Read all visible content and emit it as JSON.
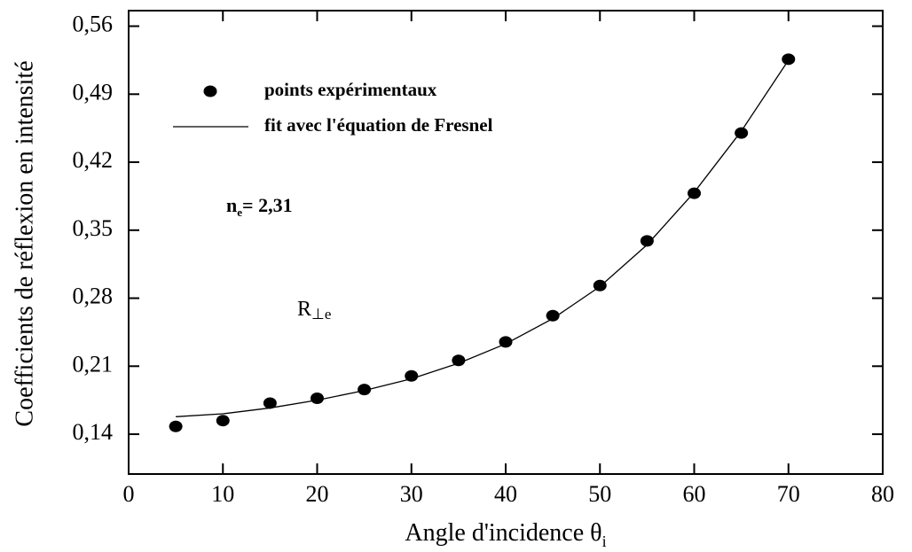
{
  "chart_data": {
    "type": "scatter",
    "xlabel": "Angle d'incidence θ",
    "xlabel_sub": "i",
    "ylabel": "Coefficients de réflexion en intensité",
    "x": [
      5,
      10,
      15,
      20,
      25,
      30,
      35,
      40,
      45,
      50,
      55,
      60,
      65,
      70
    ],
    "series": [
      {
        "name": "points expérimentaux",
        "color": "#000000",
        "style": "marker",
        "values": [
          0.148,
          0.154,
          0.172,
          0.177,
          0.186,
          0.2,
          0.216,
          0.235,
          0.262,
          0.293,
          0.339,
          0.388,
          0.45,
          0.526
        ]
      },
      {
        "name": "fit avec l'équation de Fresnel",
        "color": "#000000",
        "style": "line",
        "values": [
          0.158,
          0.161,
          0.167,
          0.175,
          0.185,
          0.197,
          0.213,
          0.233,
          0.259,
          0.292,
          0.335,
          0.389,
          0.452,
          0.525
        ]
      }
    ],
    "annotations": [
      {
        "text": "n",
        "sub": "e",
        "after": "= 2,31"
      },
      {
        "text": "R",
        "sub": "⊥e"
      }
    ],
    "xlim": [
      0,
      80
    ],
    "xticks": [
      0,
      10,
      20,
      30,
      40,
      50,
      60,
      70,
      80
    ],
    "ylim": [
      0.099,
      0.576
    ],
    "yticks": [
      {
        "value": 0.14,
        "label": "0,14"
      },
      {
        "value": 0.21,
        "label": "0,21"
      },
      {
        "value": 0.28,
        "label": "0,28"
      },
      {
        "value": 0.35,
        "label": "0,35"
      },
      {
        "value": 0.42,
        "label": "0,42"
      },
      {
        "value": 0.49,
        "label": "0,49"
      },
      {
        "value": 0.56,
        "label": "0,56"
      }
    ]
  }
}
